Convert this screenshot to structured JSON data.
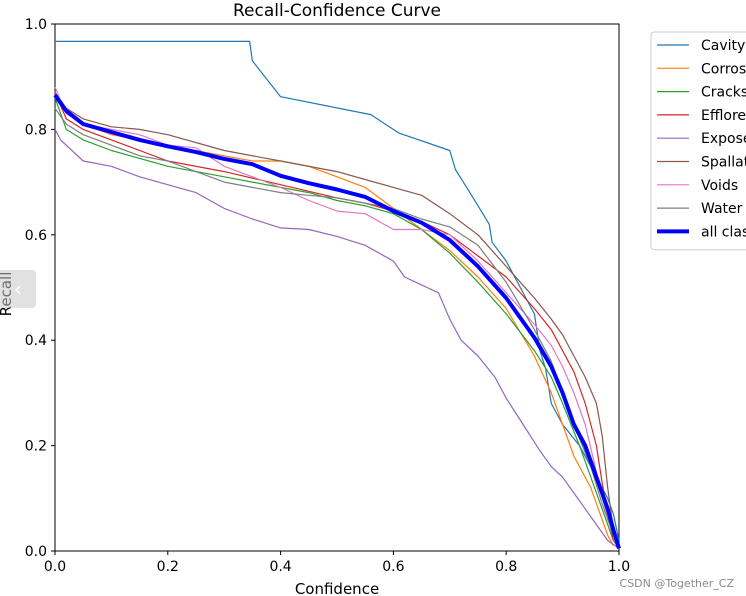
{
  "chart_data": {
    "type": "line",
    "title": "Recall-Confidence Curve",
    "xlabel": "Confidence",
    "ylabel": "Recall",
    "xlim": [
      0,
      1
    ],
    "ylim": [
      0,
      1
    ],
    "xticks": [
      "0.0",
      "0.2",
      "0.4",
      "0.6",
      "0.8",
      "1.0"
    ],
    "yticks": [
      "0.0",
      "0.2",
      "0.4",
      "0.6",
      "0.8",
      "1.0"
    ],
    "grid": false,
    "legend_position": "right-outside-top",
    "series": [
      {
        "name": "Cavity",
        "color": "#1f77b4",
        "width": 1.2,
        "points": [
          [
            0,
            0.967
          ],
          [
            0.345,
            0.967
          ],
          [
            0.35,
            0.93
          ],
          [
            0.4,
            0.862
          ],
          [
            0.56,
            0.828
          ],
          [
            0.61,
            0.793
          ],
          [
            0.7,
            0.76
          ],
          [
            0.71,
            0.724
          ],
          [
            0.73,
            0.69
          ],
          [
            0.75,
            0.655
          ],
          [
            0.77,
            0.62
          ],
          [
            0.775,
            0.586
          ],
          [
            0.8,
            0.55
          ],
          [
            0.85,
            0.45
          ],
          [
            0.86,
            0.38
          ],
          [
            0.87,
            0.345
          ],
          [
            0.88,
            0.28
          ],
          [
            0.9,
            0.24
          ],
          [
            0.93,
            0.2
          ],
          [
            0.96,
            0.14
          ],
          [
            0.98,
            0.1
          ],
          [
            0.99,
            0.07
          ],
          [
            1.0,
            0.02
          ]
        ]
      },
      {
        "name": "Corrosion",
        "color": "#ff7f0e",
        "width": 1.2,
        "points": [
          [
            0,
            0.87
          ],
          [
            0.02,
            0.84
          ],
          [
            0.05,
            0.81
          ],
          [
            0.1,
            0.79
          ],
          [
            0.2,
            0.77
          ],
          [
            0.3,
            0.75
          ],
          [
            0.35,
            0.74
          ],
          [
            0.4,
            0.74
          ],
          [
            0.45,
            0.73
          ],
          [
            0.5,
            0.71
          ],
          [
            0.55,
            0.69
          ],
          [
            0.6,
            0.65
          ],
          [
            0.65,
            0.61
          ],
          [
            0.7,
            0.57
          ],
          [
            0.75,
            0.52
          ],
          [
            0.8,
            0.46
          ],
          [
            0.85,
            0.37
          ],
          [
            0.88,
            0.3
          ],
          [
            0.9,
            0.24
          ],
          [
            0.92,
            0.18
          ],
          [
            0.95,
            0.12
          ],
          [
            0.97,
            0.06
          ],
          [
            0.98,
            0.03
          ],
          [
            0.99,
            0.01
          ]
        ]
      },
      {
        "name": "Cracks",
        "color": "#2ca02c",
        "width": 1.2,
        "points": [
          [
            0,
            0.86
          ],
          [
            0.02,
            0.8
          ],
          [
            0.05,
            0.78
          ],
          [
            0.1,
            0.76
          ],
          [
            0.2,
            0.73
          ],
          [
            0.3,
            0.71
          ],
          [
            0.4,
            0.69
          ],
          [
            0.45,
            0.68
          ],
          [
            0.5,
            0.665
          ],
          [
            0.55,
            0.655
          ],
          [
            0.6,
            0.64
          ],
          [
            0.65,
            0.61
          ],
          [
            0.7,
            0.565
          ],
          [
            0.75,
            0.51
          ],
          [
            0.8,
            0.45
          ],
          [
            0.85,
            0.38
          ],
          [
            0.88,
            0.33
          ],
          [
            0.9,
            0.28
          ],
          [
            0.93,
            0.2
          ],
          [
            0.95,
            0.14
          ],
          [
            0.97,
            0.08
          ],
          [
            0.99,
            0.02
          ],
          [
            1.0,
            0.005
          ]
        ]
      },
      {
        "name": "Efflorescence",
        "color": "#d62728",
        "width": 1.2,
        "points": [
          [
            0,
            0.87
          ],
          [
            0.02,
            0.82
          ],
          [
            0.05,
            0.8
          ],
          [
            0.1,
            0.78
          ],
          [
            0.2,
            0.74
          ],
          [
            0.3,
            0.72
          ],
          [
            0.4,
            0.695
          ],
          [
            0.5,
            0.67
          ],
          [
            0.55,
            0.66
          ],
          [
            0.6,
            0.645
          ],
          [
            0.65,
            0.625
          ],
          [
            0.7,
            0.6
          ],
          [
            0.75,
            0.56
          ],
          [
            0.8,
            0.52
          ],
          [
            0.85,
            0.46
          ],
          [
            0.88,
            0.42
          ],
          [
            0.9,
            0.38
          ],
          [
            0.92,
            0.34
          ],
          [
            0.94,
            0.28
          ],
          [
            0.96,
            0.2
          ],
          [
            0.97,
            0.13
          ],
          [
            0.98,
            0.07
          ],
          [
            0.99,
            0.02
          ]
        ]
      },
      {
        "name": "Exposed Reinforcement",
        "color": "#9467bd",
        "width": 1.2,
        "points": [
          [
            0,
            0.8
          ],
          [
            0.01,
            0.78
          ],
          [
            0.03,
            0.76
          ],
          [
            0.05,
            0.74
          ],
          [
            0.1,
            0.73
          ],
          [
            0.15,
            0.71
          ],
          [
            0.2,
            0.695
          ],
          [
            0.25,
            0.68
          ],
          [
            0.3,
            0.65
          ],
          [
            0.35,
            0.63
          ],
          [
            0.4,
            0.613
          ],
          [
            0.45,
            0.61
          ],
          [
            0.5,
            0.597
          ],
          [
            0.55,
            0.58
          ],
          [
            0.6,
            0.55
          ],
          [
            0.62,
            0.52
          ],
          [
            0.65,
            0.505
          ],
          [
            0.68,
            0.49
          ],
          [
            0.7,
            0.44
          ],
          [
            0.72,
            0.4
          ],
          [
            0.75,
            0.37
          ],
          [
            0.78,
            0.33
          ],
          [
            0.8,
            0.29
          ],
          [
            0.83,
            0.24
          ],
          [
            0.86,
            0.19
          ],
          [
            0.88,
            0.16
          ],
          [
            0.9,
            0.14
          ],
          [
            0.92,
            0.11
          ],
          [
            0.94,
            0.08
          ],
          [
            0.96,
            0.05
          ],
          [
            0.98,
            0.02
          ],
          [
            1.0,
            0.005
          ]
        ]
      },
      {
        "name": "Spallation",
        "color": "#8c564b",
        "width": 1.2,
        "points": [
          [
            0,
            0.87
          ],
          [
            0.02,
            0.84
          ],
          [
            0.05,
            0.82
          ],
          [
            0.1,
            0.805
          ],
          [
            0.15,
            0.8
          ],
          [
            0.2,
            0.79
          ],
          [
            0.3,
            0.76
          ],
          [
            0.4,
            0.74
          ],
          [
            0.5,
            0.72
          ],
          [
            0.55,
            0.705
          ],
          [
            0.6,
            0.69
          ],
          [
            0.65,
            0.675
          ],
          [
            0.7,
            0.64
          ],
          [
            0.75,
            0.6
          ],
          [
            0.8,
            0.54
          ],
          [
            0.85,
            0.48
          ],
          [
            0.88,
            0.44
          ],
          [
            0.9,
            0.41
          ],
          [
            0.92,
            0.37
          ],
          [
            0.94,
            0.33
          ],
          [
            0.96,
            0.28
          ],
          [
            0.97,
            0.22
          ],
          [
            0.98,
            0.12
          ],
          [
            0.99,
            0.04
          ],
          [
            1.0,
            0.01
          ]
        ]
      },
      {
        "name": "Voids",
        "color": "#e377c2",
        "width": 1.2,
        "points": [
          [
            0,
            0.88
          ],
          [
            0.02,
            0.83
          ],
          [
            0.05,
            0.81
          ],
          [
            0.1,
            0.8
          ],
          [
            0.15,
            0.79
          ],
          [
            0.2,
            0.77
          ],
          [
            0.25,
            0.765
          ],
          [
            0.3,
            0.73
          ],
          [
            0.35,
            0.71
          ],
          [
            0.4,
            0.69
          ],
          [
            0.45,
            0.665
          ],
          [
            0.5,
            0.645
          ],
          [
            0.55,
            0.64
          ],
          [
            0.6,
            0.61
          ],
          [
            0.65,
            0.61
          ],
          [
            0.7,
            0.6
          ],
          [
            0.75,
            0.55
          ],
          [
            0.8,
            0.49
          ],
          [
            0.85,
            0.43
          ],
          [
            0.88,
            0.39
          ],
          [
            0.9,
            0.35
          ],
          [
            0.92,
            0.3
          ],
          [
            0.94,
            0.24
          ],
          [
            0.96,
            0.15
          ],
          [
            0.98,
            0.06
          ],
          [
            1.0,
            0.01
          ]
        ]
      },
      {
        "name": "Water leakage",
        "color": "#7f7f7f",
        "width": 1.2,
        "points": [
          [
            0,
            0.84
          ],
          [
            0.02,
            0.81
          ],
          [
            0.05,
            0.79
          ],
          [
            0.1,
            0.77
          ],
          [
            0.15,
            0.75
          ],
          [
            0.2,
            0.74
          ],
          [
            0.25,
            0.72
          ],
          [
            0.3,
            0.7
          ],
          [
            0.35,
            0.69
          ],
          [
            0.4,
            0.68
          ],
          [
            0.45,
            0.675
          ],
          [
            0.5,
            0.67
          ],
          [
            0.55,
            0.66
          ],
          [
            0.6,
            0.65
          ],
          [
            0.65,
            0.63
          ],
          [
            0.7,
            0.615
          ],
          [
            0.75,
            0.58
          ],
          [
            0.8,
            0.51
          ],
          [
            0.85,
            0.42
          ],
          [
            0.88,
            0.36
          ],
          [
            0.9,
            0.3
          ],
          [
            0.92,
            0.24
          ],
          [
            0.95,
            0.16
          ],
          [
            0.97,
            0.09
          ],
          [
            0.99,
            0.03
          ],
          [
            1.0,
            0.01
          ]
        ]
      },
      {
        "name": "all classes",
        "color": "#0000ff",
        "width": 4,
        "points": [
          [
            0,
            0.865
          ],
          [
            0.02,
            0.835
          ],
          [
            0.05,
            0.81
          ],
          [
            0.1,
            0.795
          ],
          [
            0.15,
            0.78
          ],
          [
            0.2,
            0.768
          ],
          [
            0.25,
            0.757
          ],
          [
            0.3,
            0.744
          ],
          [
            0.35,
            0.734
          ],
          [
            0.4,
            0.712
          ],
          [
            0.45,
            0.698
          ],
          [
            0.5,
            0.686
          ],
          [
            0.55,
            0.672
          ],
          [
            0.6,
            0.645
          ],
          [
            0.65,
            0.623
          ],
          [
            0.7,
            0.59
          ],
          [
            0.75,
            0.54
          ],
          [
            0.8,
            0.48
          ],
          [
            0.85,
            0.405
          ],
          [
            0.88,
            0.35
          ],
          [
            0.9,
            0.3
          ],
          [
            0.92,
            0.24
          ],
          [
            0.94,
            0.2
          ],
          [
            0.96,
            0.14
          ],
          [
            0.98,
            0.08
          ],
          [
            0.99,
            0.04
          ],
          [
            1.0,
            0.005
          ]
        ]
      }
    ]
  },
  "overlay": {
    "nav_arrow": "‹",
    "watermark": "CSDN @Together_CZ"
  }
}
